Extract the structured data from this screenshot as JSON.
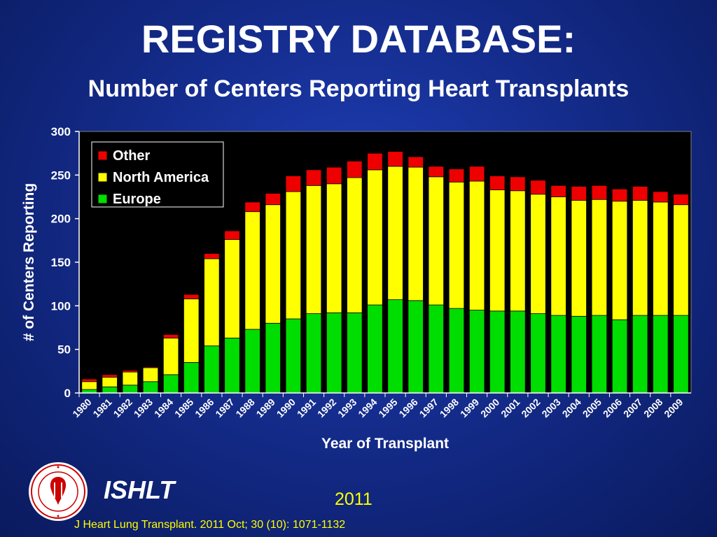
{
  "title": "REGISTRY DATABASE:",
  "subtitle": "Number of Centers Reporting Heart Transplants",
  "organization": "ISHLT",
  "logo_text": "INTERNATIONAL SOCIETY FOR HEART & LUNG TRANSPLANTATION",
  "year_label": "2011",
  "citation": "J Heart Lung Transplant. 2011 Oct; 30 (10): 1071-1132",
  "colors": {
    "Europe": "#00dd00",
    "North America": "#ffff00",
    "Other": "#ee0000",
    "plot_bg": "#000000"
  },
  "chart_data": {
    "type": "bar",
    "stacked": true,
    "xlabel": "Year of Transplant",
    "ylabel": "# of Centers Reporting",
    "ylim": [
      0,
      300
    ],
    "yticks": [
      0,
      50,
      100,
      150,
      200,
      250,
      300
    ],
    "grid": false,
    "legend_position": "top-left",
    "legend_order": [
      "Other",
      "North America",
      "Europe"
    ],
    "categories": [
      "1980",
      "1981",
      "1982",
      "1983",
      "1984",
      "1985",
      "1986",
      "1987",
      "1988",
      "1989",
      "1990",
      "1991",
      "1992",
      "1993",
      "1994",
      "1995",
      "1996",
      "1997",
      "1998",
      "1999",
      "2000",
      "2001",
      "2002",
      "2003",
      "2004",
      "2005",
      "2006",
      "2007",
      "2008",
      "2009"
    ],
    "series": [
      {
        "name": "Europe",
        "values": [
          4,
          7,
          9,
          13,
          21,
          35,
          54,
          63,
          73,
          80,
          85,
          91,
          92,
          92,
          101,
          107,
          106,
          101,
          97,
          95,
          94,
          94,
          91,
          89,
          88,
          89,
          84,
          89,
          89,
          89
        ]
      },
      {
        "name": "North America",
        "values": [
          9,
          11,
          15,
          16,
          42,
          73,
          100,
          113,
          135,
          136,
          146,
          147,
          148,
          155,
          155,
          153,
          153,
          147,
          145,
          148,
          139,
          138,
          137,
          136,
          133,
          133,
          136,
          132,
          130,
          127
        ]
      },
      {
        "name": "Other",
        "values": [
          3,
          3,
          2,
          1,
          4,
          5,
          6,
          10,
          11,
          13,
          18,
          18,
          19,
          19,
          19,
          17,
          12,
          12,
          15,
          17,
          16,
          16,
          16,
          13,
          16,
          16,
          14,
          16,
          12,
          12
        ]
      }
    ]
  }
}
